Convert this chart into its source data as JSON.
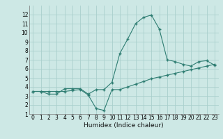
{
  "title": "",
  "xlabel": "Humidex (Indice chaleur)",
  "xlim": [
    -0.5,
    23.5
  ],
  "ylim": [
    1,
    13
  ],
  "xticks": [
    0,
    1,
    2,
    3,
    4,
    5,
    6,
    7,
    8,
    9,
    10,
    11,
    12,
    13,
    14,
    15,
    16,
    17,
    18,
    19,
    20,
    21,
    22,
    23
  ],
  "yticks": [
    1,
    2,
    3,
    4,
    5,
    6,
    7,
    8,
    9,
    10,
    11,
    12
  ],
  "bg_color": "#cde8e5",
  "grid_color": "#aacfcc",
  "line_color": "#2e7d72",
  "line1_x": [
    0,
    1,
    2,
    3,
    4,
    5,
    6,
    7,
    8,
    9,
    10,
    11,
    12,
    13,
    14,
    15,
    16,
    17,
    18,
    19,
    20,
    21,
    22,
    23
  ],
  "line1_y": [
    3.5,
    3.5,
    3.2,
    3.2,
    3.8,
    3.8,
    3.8,
    3.2,
    3.7,
    3.7,
    4.5,
    7.7,
    9.3,
    11.0,
    11.7,
    11.95,
    10.4,
    7.0,
    6.8,
    6.5,
    6.3,
    6.8,
    6.9,
    6.4
  ],
  "line2_x": [
    0,
    1,
    2,
    3,
    4,
    5,
    6,
    7,
    8,
    9,
    10,
    11,
    12,
    13,
    14,
    15,
    16,
    17,
    18,
    19,
    20,
    21,
    22,
    23
  ],
  "line2_y": [
    3.5,
    3.5,
    3.5,
    3.5,
    3.5,
    3.6,
    3.7,
    3.1,
    1.6,
    1.4,
    3.7,
    3.7,
    4.0,
    4.3,
    4.6,
    4.9,
    5.1,
    5.3,
    5.5,
    5.7,
    5.9,
    6.1,
    6.3,
    6.5
  ],
  "tick_fontsize": 5.5,
  "xlabel_fontsize": 6.5
}
